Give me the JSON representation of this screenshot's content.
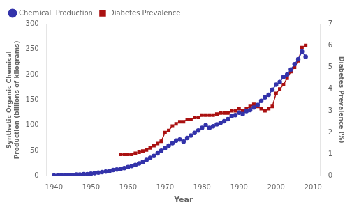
{
  "chart_data": {
    "type": "line",
    "x_label": "Year",
    "y_label": "Synthetic Organic Chemical\nProduction (billions of kilograms)",
    "y2_label": "Diabetes Prevalence (%)",
    "xlim": [
      1938,
      2012
    ],
    "xticks": [
      1940,
      1950,
      1960,
      1970,
      1980,
      1990,
      2000,
      2010
    ],
    "ylim": [
      0,
      300
    ],
    "yticks": [
      0,
      50,
      100,
      150,
      200,
      250,
      300
    ],
    "y2lim": [
      0,
      7
    ],
    "y2ticks": [
      0,
      1,
      2,
      3,
      4,
      5,
      6,
      7
    ],
    "grid": false,
    "legend": "upper left",
    "series": [
      {
        "name": "Chemical  Production",
        "color": "#3333aa",
        "marker": "circle",
        "x": [
          1940,
          1941,
          1942,
          1943,
          1944,
          1945,
          1946,
          1947,
          1948,
          1949,
          1950,
          1951,
          1952,
          1953,
          1954,
          1955,
          1956,
          1957,
          1958,
          1959,
          1960,
          1961,
          1962,
          1963,
          1964,
          1965,
          1966,
          1967,
          1968,
          1969,
          1970,
          1971,
          1972,
          1973,
          1974,
          1975,
          1976,
          1977,
          1978,
          1979,
          1980,
          1981,
          1982,
          1983,
          1984,
          1985,
          1986,
          1987,
          1988,
          1989,
          1990,
          1991,
          1992,
          1993,
          1994,
          1995,
          1996,
          1997,
          1998,
          1999,
          2000,
          2001,
          2002,
          2003,
          2004,
          2005,
          2006,
          2007,
          2008
        ],
        "values": [
          1,
          1,
          2,
          2,
          2,
          2,
          3,
          3,
          4,
          4,
          5,
          6,
          7,
          8,
          9,
          10,
          12,
          13,
          14,
          16,
          18,
          20,
          22,
          25,
          28,
          32,
          36,
          40,
          45,
          50,
          55,
          60,
          65,
          70,
          72,
          68,
          75,
          80,
          85,
          90,
          95,
          100,
          95,
          98,
          102,
          105,
          108,
          112,
          118,
          120,
          125,
          122,
          128,
          130,
          135,
          140,
          148,
          155,
          160,
          170,
          180,
          185,
          195,
          200,
          210,
          220,
          230,
          245,
          235
        ]
      },
      {
        "name": "Diabetes Prevalence",
        "color": "#aa1111",
        "marker": "square",
        "axis": "y2",
        "x": [
          1958,
          1959,
          1960,
          1961,
          1962,
          1963,
          1964,
          1965,
          1966,
          1967,
          1968,
          1969,
          1970,
          1971,
          1972,
          1973,
          1974,
          1975,
          1976,
          1977,
          1978,
          1979,
          1980,
          1981,
          1982,
          1983,
          1984,
          1985,
          1986,
          1987,
          1988,
          1989,
          1990,
          1991,
          1992,
          1993,
          1994,
          1995,
          1996,
          1997,
          1998,
          1999,
          2000,
          2001,
          2002,
          2003,
          2004,
          2005,
          2006,
          2007,
          2008
        ],
        "values": [
          1.0,
          1.0,
          1.0,
          1.0,
          1.05,
          1.1,
          1.15,
          1.2,
          1.3,
          1.4,
          1.5,
          1.6,
          2.0,
          2.1,
          2.3,
          2.4,
          2.5,
          2.5,
          2.6,
          2.6,
          2.7,
          2.7,
          2.8,
          2.8,
          2.8,
          2.8,
          2.85,
          2.9,
          2.9,
          2.9,
          3.0,
          3.0,
          3.1,
          3.0,
          3.1,
          3.2,
          3.3,
          3.2,
          3.1,
          3.0,
          3.1,
          3.2,
          3.8,
          4.0,
          4.2,
          4.5,
          4.8,
          5.0,
          5.3,
          5.9,
          6.0
        ]
      }
    ]
  }
}
